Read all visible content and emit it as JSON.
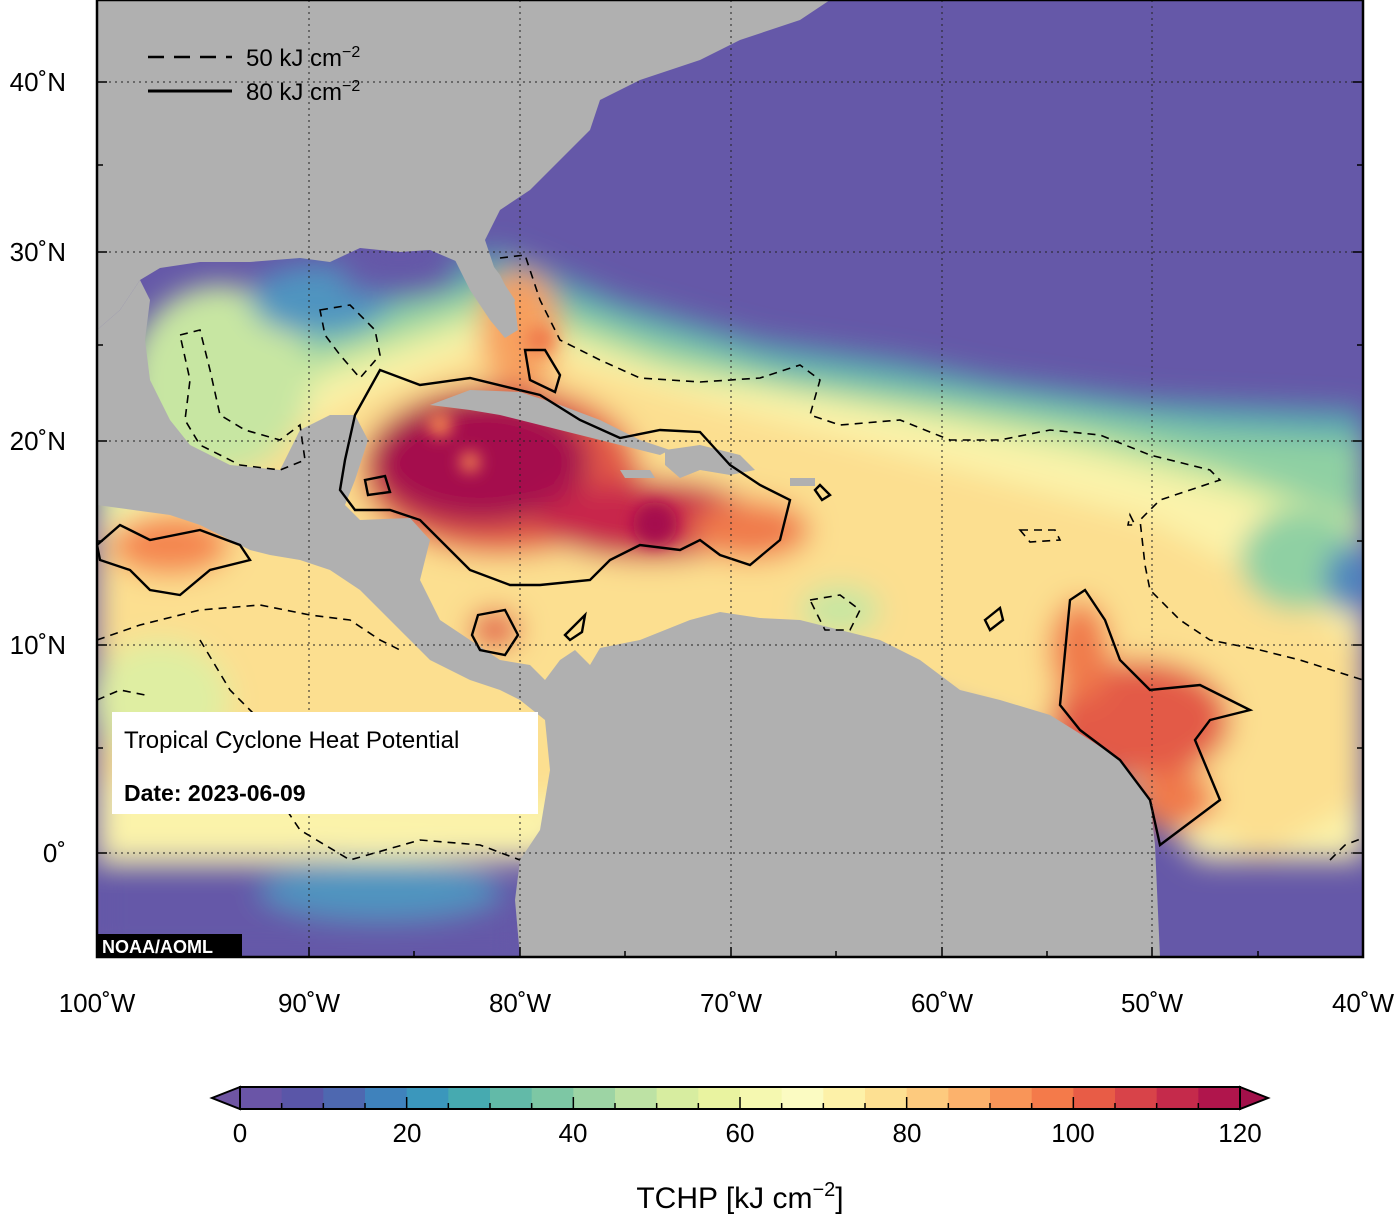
{
  "map": {
    "title": "Tropical Cyclone Heat Potential",
    "date_label": "Date: 2023-06-09",
    "credit": "NOAA/AOML",
    "lat_labels": [
      "40˚N",
      "30˚N",
      "20˚N",
      "10˚N",
      "0˚"
    ],
    "lon_labels": [
      "100˚W",
      "90˚W",
      "80˚W",
      "70˚W",
      "60˚W",
      "50˚W",
      "40˚W"
    ],
    "legend": {
      "dashed_label": "50 kJ cm",
      "solid_label": "80 kJ cm",
      "exponent": "−2"
    },
    "colors": {
      "ocean_cold": "#6558a8",
      "land": "#b0b0b0",
      "high_tchp": "#a50f4d"
    }
  },
  "colorbar": {
    "title_prefix": "TCHP [kJ cm",
    "title_exponent": "−2",
    "title_suffix": "]",
    "tick_labels": [
      "0",
      "20",
      "40",
      "60",
      "80",
      "100",
      "120"
    ],
    "range": [
      0,
      120
    ],
    "step": 5,
    "colors": [
      "#6a55a7",
      "#5a56a8",
      "#4e68b0",
      "#3f82bc",
      "#3b97bc",
      "#46aab0",
      "#62baa8",
      "#7dc7a4",
      "#9dd4a4",
      "#bde2a4",
      "#d7eda0",
      "#e9f3a0",
      "#f5f8b0",
      "#fbfbc2",
      "#fdf1a8",
      "#fde092",
      "#fdca7e",
      "#fcb26c",
      "#f99558",
      "#f47a4a",
      "#e85c46",
      "#d84349",
      "#c52a4b",
      "#b0154c"
    ],
    "under_color": "#6f55a3",
    "over_color": "#a3104a"
  }
}
